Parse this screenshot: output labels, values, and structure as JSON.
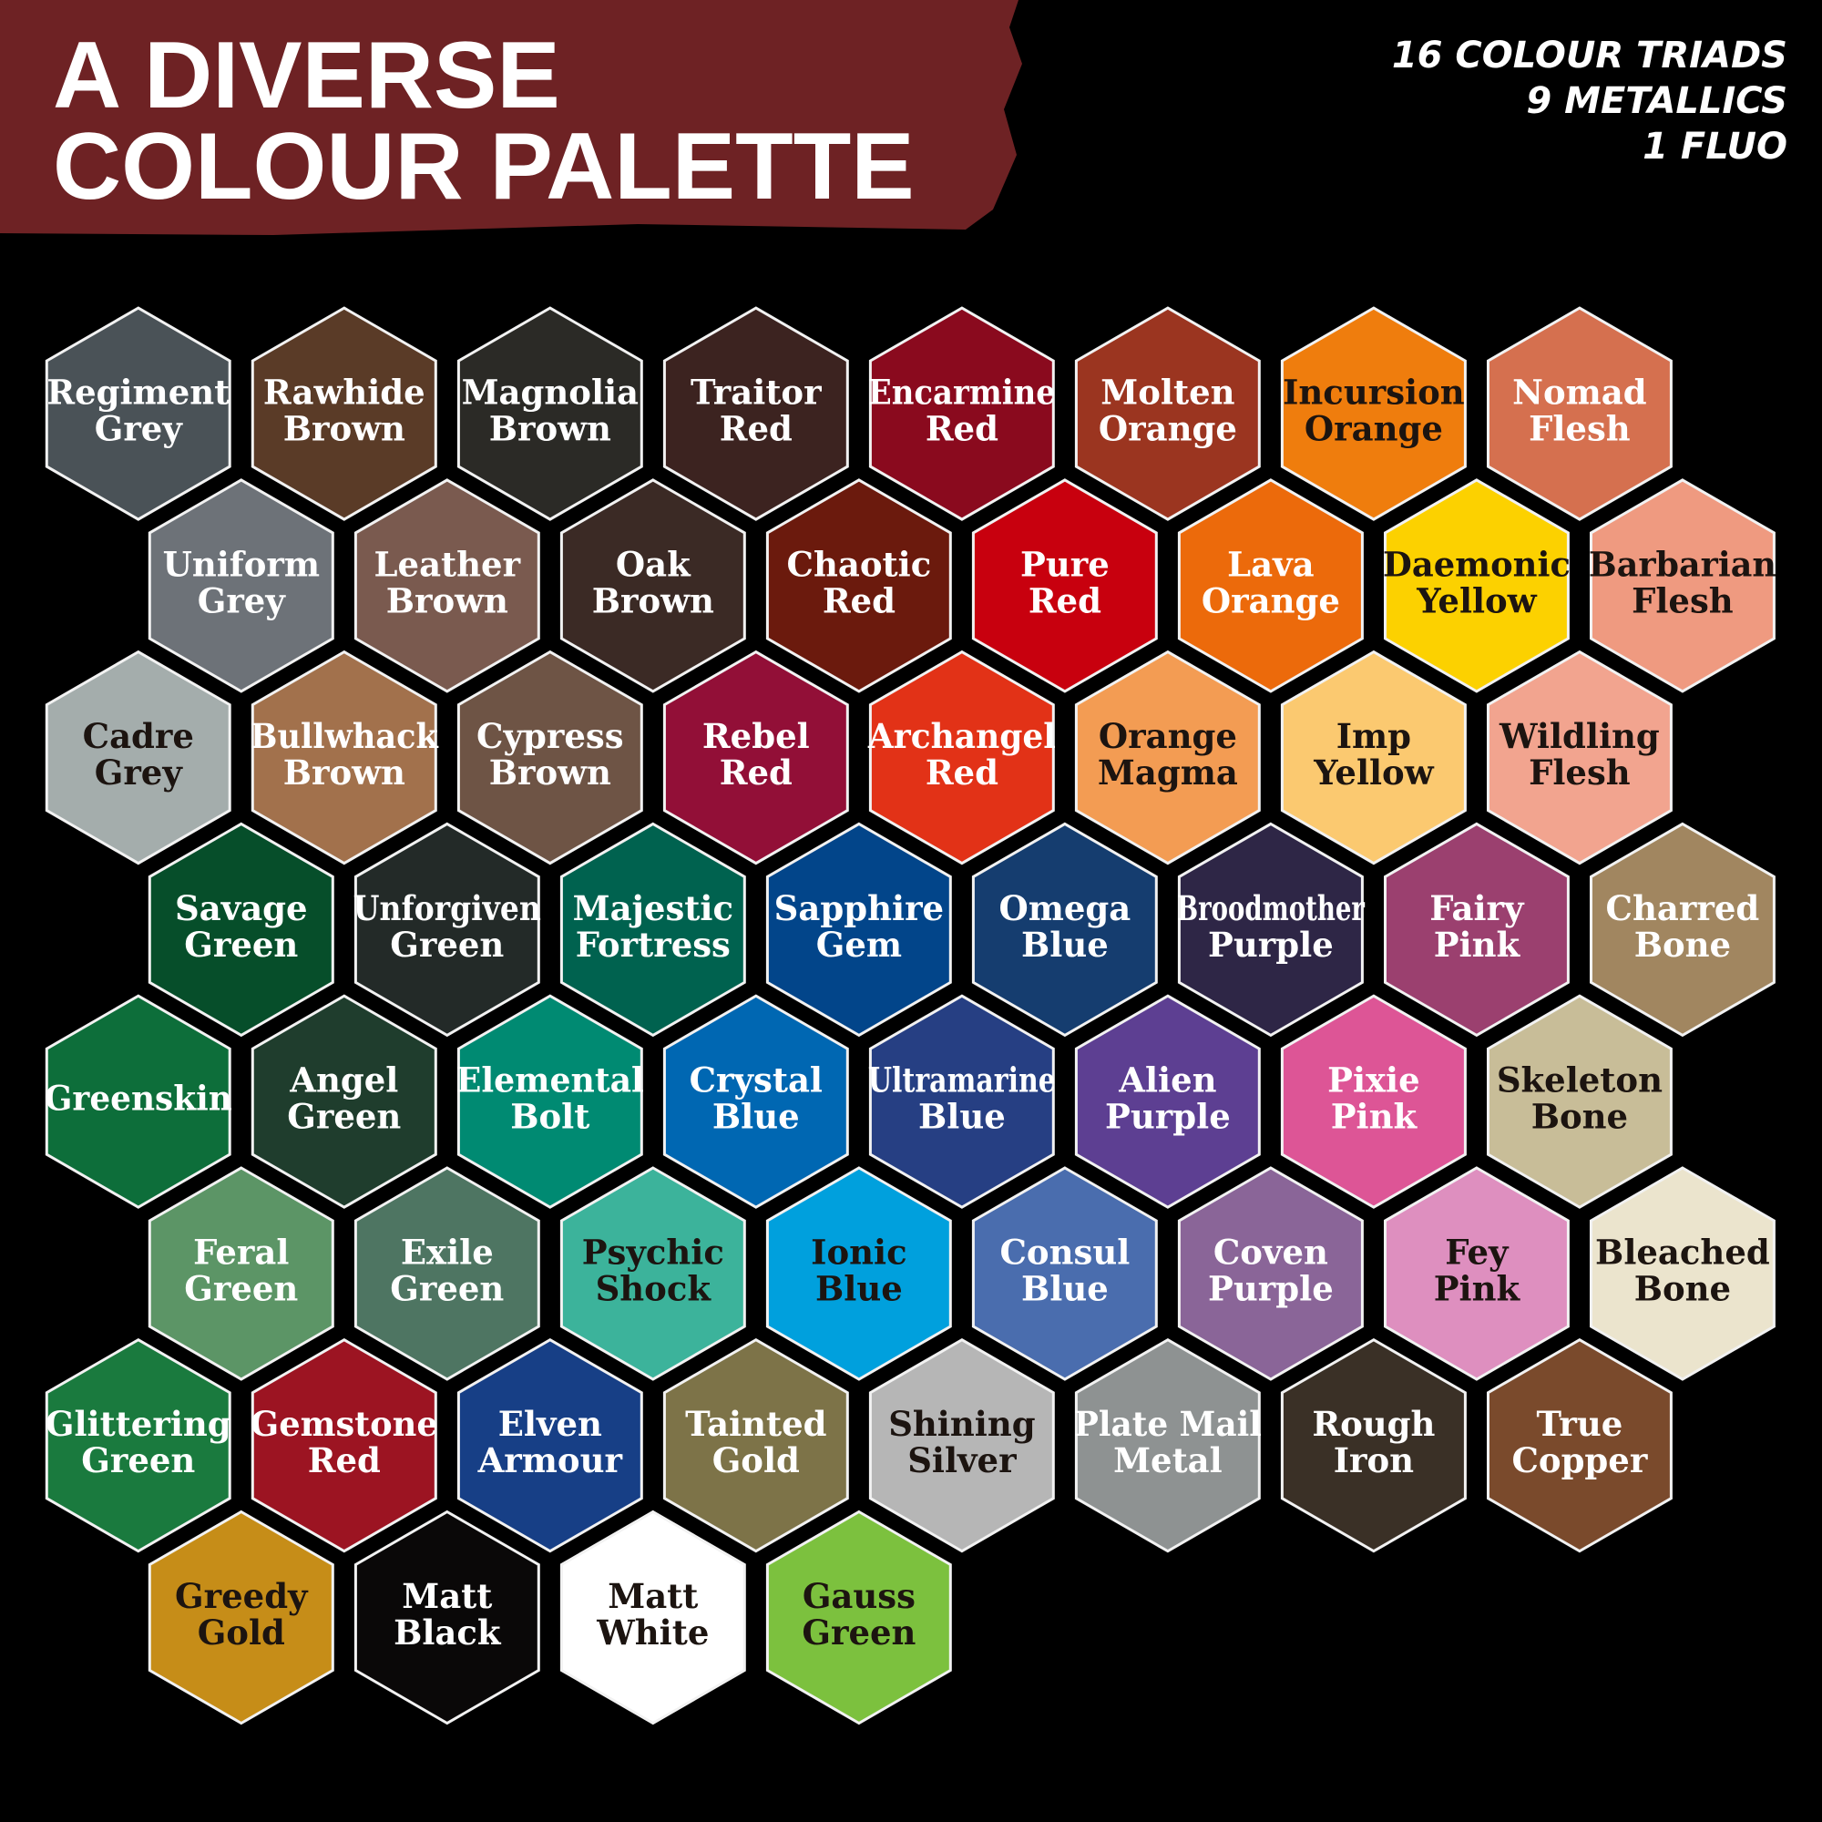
{
  "header": {
    "title": [
      "A DIVERSE",
      "COLOUR PALETTE"
    ],
    "notes": [
      "16 COLOUR TRIADS",
      "9 METALLICS",
      "1 FLUO"
    ]
  },
  "rows": [
    {
      "hexes": [
        {
          "name": [
            "Regiment",
            "Grey"
          ],
          "color": "#4a5257"
        },
        {
          "name": [
            "Rawhide",
            "Brown"
          ],
          "color": "#5a3b27"
        },
        {
          "name": [
            "Magnolia",
            "Brown"
          ],
          "color": "#2b2a26"
        },
        {
          "name": [
            "Traitor",
            "Red"
          ],
          "color": "#3c2320"
        },
        {
          "name": [
            "Encarmine",
            "Red"
          ],
          "color": "#8a0a1e"
        },
        {
          "name": [
            "Molten",
            "Orange"
          ],
          "color": "#9b3520"
        },
        {
          "name": [
            "Incursion",
            "Orange"
          ],
          "color": "#ef7d0d"
        },
        {
          "name": [
            "Nomad",
            "Flesh"
          ],
          "color": "#d5704f"
        }
      ]
    },
    {
      "hexes": [
        {
          "name": [
            "Uniform",
            "Grey"
          ],
          "color": "#6d7278"
        },
        {
          "name": [
            "Leather",
            "Brown"
          ],
          "color": "#7a5a4f"
        },
        {
          "name": [
            "Oak",
            "Brown"
          ],
          "color": "#3b2a25"
        },
        {
          "name": [
            "Chaotic",
            "Red"
          ],
          "color": "#6b1a0d"
        },
        {
          "name": [
            "Pure",
            "Red"
          ],
          "color": "#c8000e"
        },
        {
          "name": [
            "Lava",
            "Orange"
          ],
          "color": "#ec6a0b"
        },
        {
          "name": [
            "Daemonic",
            "Yellow"
          ],
          "color": "#fcd100"
        },
        {
          "name": [
            "Barbarian",
            "Flesh"
          ],
          "color": "#ef9a80"
        }
      ]
    },
    {
      "hexes": [
        {
          "name": [
            "Cadre",
            "Grey"
          ],
          "color": "#a4adac"
        },
        {
          "name": [
            "Bullwhack",
            "Brown"
          ],
          "color": "#a2714c"
        },
        {
          "name": [
            "Cypress",
            "Brown"
          ],
          "color": "#6e5445"
        },
        {
          "name": [
            "Rebel",
            "Red"
          ],
          "color": "#920f37"
        },
        {
          "name": [
            "Archangel",
            "Red"
          ],
          "color": "#e23217"
        },
        {
          "name": [
            "Orange",
            "Magma"
          ],
          "color": "#f39c53"
        },
        {
          "name": [
            "Imp",
            "Yellow"
          ],
          "color": "#fbc970"
        },
        {
          "name": [
            "Wildling",
            "Flesh"
          ],
          "color": "#f2a48f"
        }
      ]
    },
    {
      "hexes": [
        {
          "name": [
            "Savage",
            "Green"
          ],
          "color": "#064e2a"
        },
        {
          "name": [
            "Unforgiven",
            "Green"
          ],
          "color": "#232a28"
        },
        {
          "name": [
            "Majestic",
            "Fortress"
          ],
          "color": "#00624f"
        },
        {
          "name": [
            "Sapphire",
            "Gem"
          ],
          "color": "#02458a"
        },
        {
          "name": [
            "Omega",
            "Blue"
          ],
          "color": "#153d6f"
        },
        {
          "name": [
            "Broodmother",
            "Purple"
          ],
          "color": "#2e2646"
        },
        {
          "name": [
            "Fairy",
            "Pink"
          ],
          "color": "#9b406f"
        },
        {
          "name": [
            "Charred",
            "Bone"
          ],
          "color": "#a18660"
        }
      ]
    },
    {
      "hexes": [
        {
          "name": [
            "Greenskin"
          ],
          "color": "#0d6e3a"
        },
        {
          "name": [
            "Angel",
            "Green"
          ],
          "color": "#1f3d2d"
        },
        {
          "name": [
            "Elemental",
            "Bolt"
          ],
          "color": "#008a72"
        },
        {
          "name": [
            "Crystal",
            "Blue"
          ],
          "color": "#0067b2"
        },
        {
          "name": [
            "Ultramarine",
            "Blue"
          ],
          "color": "#263f83"
        },
        {
          "name": [
            "Alien",
            "Purple"
          ],
          "color": "#5d3f92"
        },
        {
          "name": [
            "Pixie",
            "Pink"
          ],
          "color": "#dd5596"
        },
        {
          "name": [
            "Skeleton",
            "Bone"
          ],
          "color": "#c8bd98"
        }
      ]
    },
    {
      "hexes": [
        {
          "name": [
            "Feral",
            "Green"
          ],
          "color": "#5c9566"
        },
        {
          "name": [
            "Exile",
            "Green"
          ],
          "color": "#4e7562"
        },
        {
          "name": [
            "Psychic",
            "Shock"
          ],
          "color": "#3cb39b"
        },
        {
          "name": [
            "Ionic",
            "Blue"
          ],
          "color": "#00a0dd"
        },
        {
          "name": [
            "Consul",
            "Blue"
          ],
          "color": "#4a6dae"
        },
        {
          "name": [
            "Coven",
            "Purple"
          ],
          "color": "#8a6598"
        },
        {
          "name": [
            "Fey",
            "Pink"
          ],
          "color": "#de8fbf"
        },
        {
          "name": [
            "Bleached",
            "Bone"
          ],
          "color": "#ebe4cd"
        }
      ]
    },
    {
      "hexes": [
        {
          "name": [
            "Glittering",
            "Green"
          ],
          "color": "#1a7a3e"
        },
        {
          "name": [
            "Gemstone",
            "Red"
          ],
          "color": "#9c1422"
        },
        {
          "name": [
            "Elven",
            "Armour"
          ],
          "color": "#173f86"
        },
        {
          "name": [
            "Tainted",
            "Gold"
          ],
          "color": "#7d7348"
        },
        {
          "name": [
            "Shining",
            "Silver"
          ],
          "color": "#b6b6b6"
        },
        {
          "name": [
            "Plate Mail",
            "Metal"
          ],
          "color": "#8e9292"
        },
        {
          "name": [
            "Rough",
            "Iron"
          ],
          "color": "#3a3026"
        },
        {
          "name": [
            "True",
            "Copper"
          ],
          "color": "#7a4a2c"
        }
      ]
    },
    {
      "hexes": [
        {
          "name": [
            "Greedy",
            "Gold"
          ],
          "color": "#c68d18"
        },
        {
          "name": [
            "Matt",
            "Black"
          ],
          "color": "#0a0808"
        },
        {
          "name": [
            "Matt",
            "White"
          ],
          "color": "#ffffff"
        },
        {
          "name": [
            "Gauss",
            "Green"
          ],
          "color": "#7cc13e"
        }
      ]
    }
  ]
}
